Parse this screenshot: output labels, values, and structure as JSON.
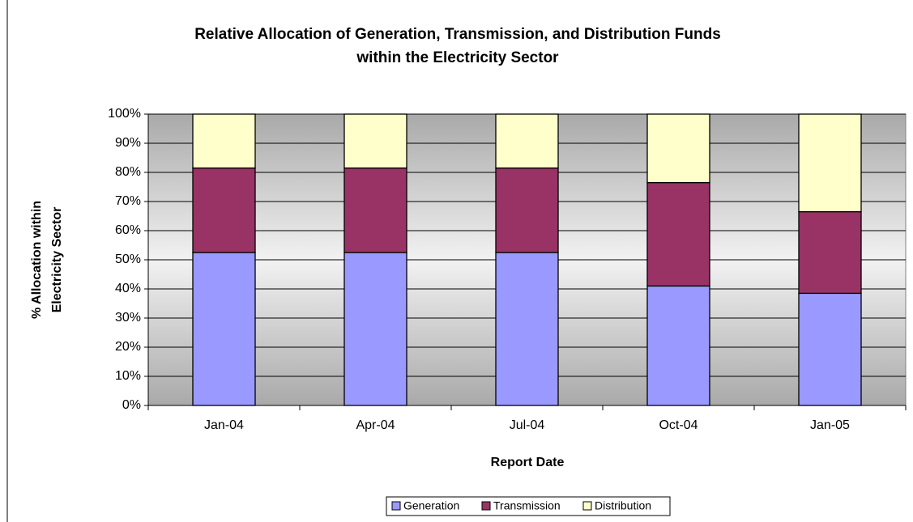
{
  "chart_data": {
    "type": "stacked_bar",
    "title": [
      "Relative Allocation of Generation, Transmission, and Distribution Funds",
      "within the Electricity Sector"
    ],
    "x_label": "Report Date",
    "y_label": [
      "% Allocation within",
      "Electricity Sector"
    ],
    "categories": [
      "Jan-04",
      "Apr-04",
      "Jul-04",
      "Oct-04",
      "Jan-05"
    ],
    "series": [
      {
        "name": "Generation",
        "color": "#9999ff",
        "values": [
          52.5,
          52.5,
          52.5,
          41,
          38.5
        ]
      },
      {
        "name": "Transmission",
        "color": "#993366",
        "values": [
          29,
          29,
          29,
          35.5,
          28
        ]
      },
      {
        "name": "Distribution",
        "color": "#ffffcc",
        "values": [
          18.5,
          18.5,
          18.5,
          23.5,
          33.5
        ]
      }
    ],
    "ylim": [
      0,
      100
    ],
    "yticks": [
      {
        "value": 0,
        "label": "0%"
      },
      {
        "value": 10,
        "label": "10%"
      },
      {
        "value": 20,
        "label": "20%"
      },
      {
        "value": 30,
        "label": "30%"
      },
      {
        "value": 40,
        "label": "40%"
      },
      {
        "value": 50,
        "label": "50%"
      },
      {
        "value": 60,
        "label": "60%"
      },
      {
        "value": 70,
        "label": "70%"
      },
      {
        "value": 80,
        "label": "80%"
      },
      {
        "value": 90,
        "label": "90%"
      },
      {
        "value": 100,
        "label": "100%"
      }
    ],
    "grid": true,
    "legend": "bottom"
  }
}
